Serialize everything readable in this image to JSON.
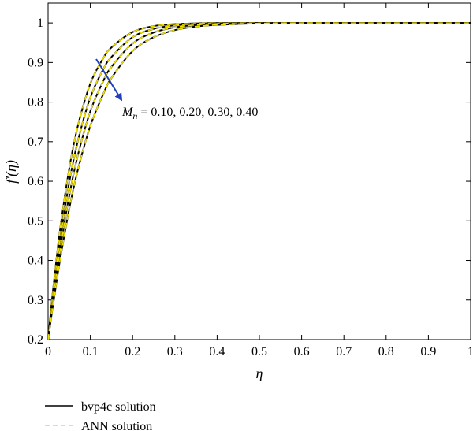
{
  "chart_data": {
    "type": "line",
    "title": "",
    "xlabel": "η",
    "ylabel": "f′(η)",
    "xlim": [
      0,
      1
    ],
    "ylim": [
      0.2,
      1.05
    ],
    "xticks": [
      "0",
      "0.1",
      "0.2",
      "0.3",
      "0.4",
      "0.5",
      "0.6",
      "0.7",
      "0.8",
      "0.9",
      "1"
    ],
    "yticks": [
      "0.2",
      "0.3",
      "0.4",
      "0.5",
      "0.6",
      "0.7",
      "0.8",
      "0.9",
      "1"
    ],
    "grid": false,
    "x": [
      0,
      0.01,
      0.02,
      0.03,
      0.05,
      0.07,
      0.1,
      0.13,
      0.15,
      0.2,
      0.25,
      0.3,
      0.35,
      0.4,
      0.5,
      0.6,
      0.7,
      0.8,
      0.9,
      1.0
    ],
    "series": [
      {
        "param": "0.10",
        "values": [
          0.2,
          0.309,
          0.405,
          0.491,
          0.632,
          0.738,
          0.847,
          0.91,
          0.938,
          0.977,
          0.992,
          0.997,
          0.999,
          1.0,
          1.0,
          1.0,
          1.0,
          1.0,
          1.0,
          1.0
        ]
      },
      {
        "param": "0.20",
        "values": [
          0.2,
          0.297,
          0.385,
          0.464,
          0.597,
          0.7,
          0.812,
          0.882,
          0.914,
          0.964,
          0.985,
          0.994,
          0.998,
          0.999,
          1.0,
          1.0,
          1.0,
          1.0,
          1.0,
          1.0
        ]
      },
      {
        "param": "0.30",
        "values": [
          0.2,
          0.286,
          0.365,
          0.438,
          0.563,
          0.664,
          0.777,
          0.852,
          0.889,
          0.948,
          0.976,
          0.989,
          0.995,
          0.998,
          1.0,
          1.0,
          1.0,
          1.0,
          1.0,
          1.0
        ]
      },
      {
        "param": "0.40",
        "values": [
          0.2,
          0.275,
          0.346,
          0.412,
          0.53,
          0.627,
          0.74,
          0.819,
          0.861,
          0.929,
          0.964,
          0.982,
          0.991,
          0.995,
          0.999,
          1.0,
          1.0,
          1.0,
          1.0,
          1.0
        ]
      }
    ],
    "annotation": {
      "symbol": "M",
      "subscript": "n",
      "text": " = 0.10, 0.20, 0.30, 0.40",
      "arrow_color": "#1f3fbf"
    },
    "legend": {
      "position": "bottom-left",
      "entries": [
        {
          "label": "bvp4c solution",
          "color": "#000000",
          "style": "solid"
        },
        {
          "label": "ANN solution",
          "color": "#f0e000",
          "style": "dashed"
        }
      ]
    },
    "colors": {
      "exact": "#000000",
      "ann": "#f0e000",
      "arrow": "#1f3fbf"
    }
  }
}
